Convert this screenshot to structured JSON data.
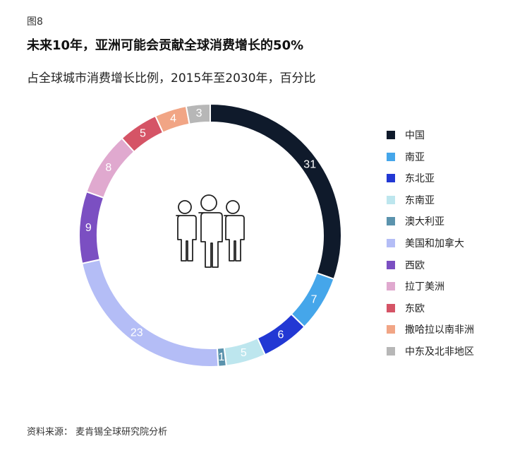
{
  "figure_label": "图8",
  "title": "未来10年，亚洲可能会贡献全球消费增长的50%",
  "subtitle": "占全球城市消费增长比例，2015年至2030年，百分比",
  "source": "资料来源： 麦肯锡全球研究院分析",
  "icon": "people-group-icon",
  "chart_data": {
    "type": "pie",
    "donut": true,
    "legend_position": "right",
    "categories": [
      "中国",
      "南亚",
      "东北亚",
      "东南亚",
      "澳大利亚",
      "美国和加拿大",
      "西欧",
      "拉丁美洲",
      "东欧",
      "撒哈拉以南非洲",
      "中东及北非地区"
    ],
    "values": [
      31,
      7,
      6,
      5,
      1,
      23,
      9,
      8,
      5,
      4,
      3
    ],
    "colors": [
      "#0f1a2b",
      "#45a6ea",
      "#2238d4",
      "#bde6ee",
      "#5b93ad",
      "#b4bdf6",
      "#7b4fc2",
      "#e0a9cf",
      "#d55466",
      "#f1a585",
      "#b7b7b7"
    ]
  }
}
